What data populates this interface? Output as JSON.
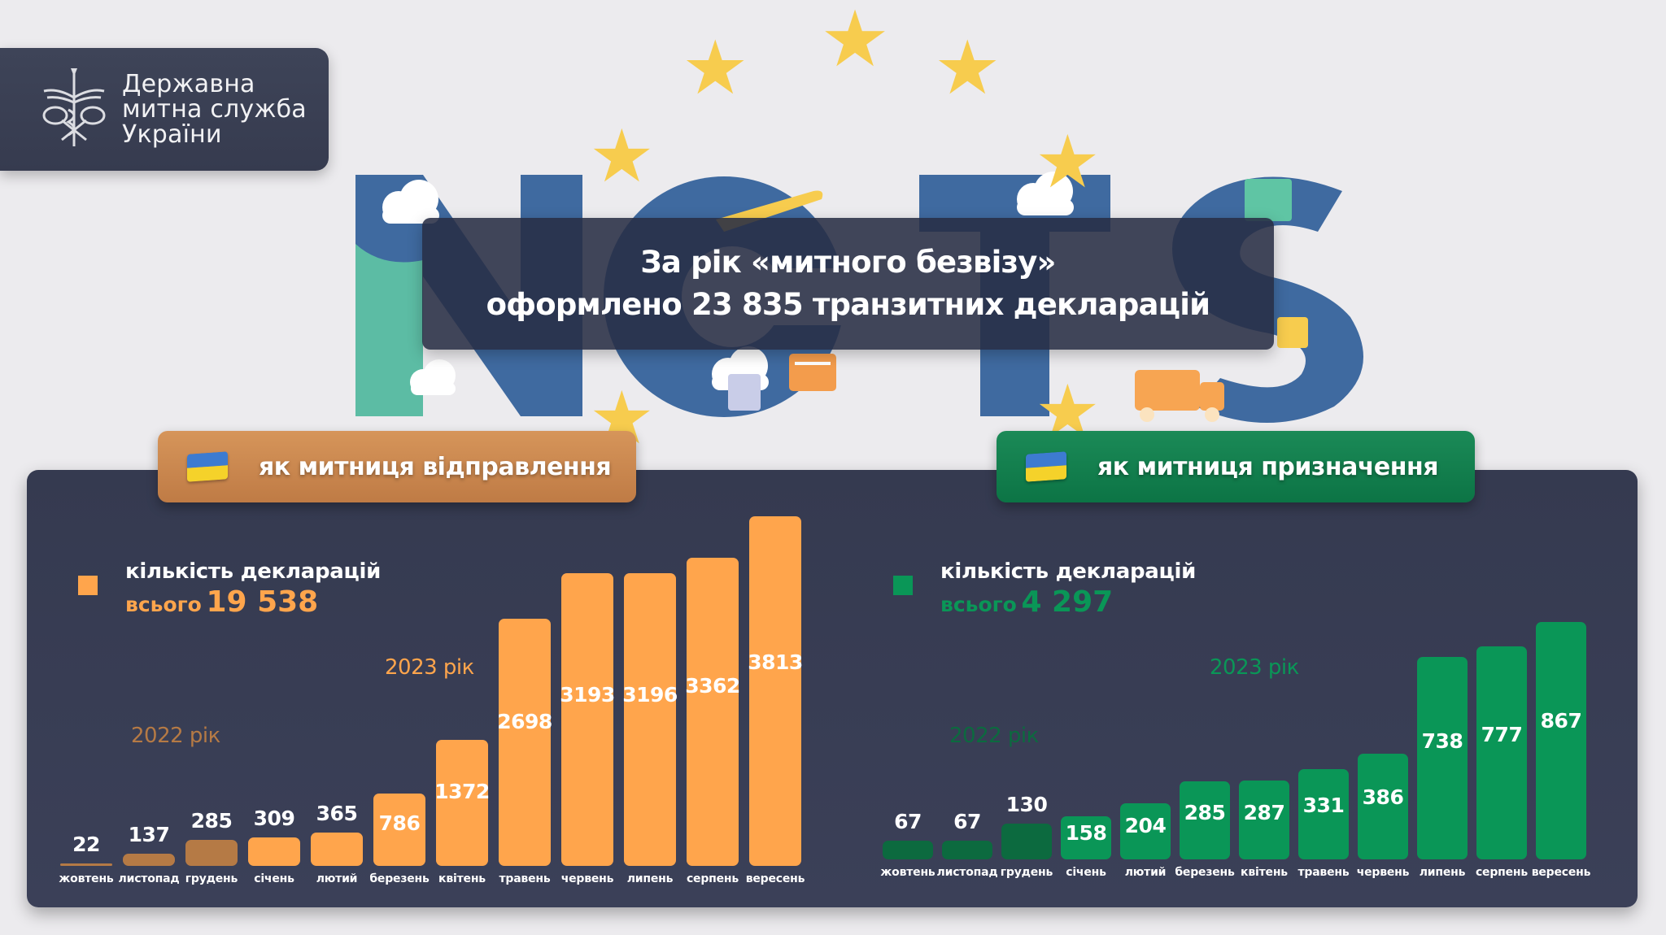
{
  "logo": {
    "line1": "Державна",
    "line2": "митна служба",
    "line3": "України"
  },
  "headline": {
    "line1": "За рік «митного безвізу»",
    "line2": "оформлено 23 835 транзитних декларацій"
  },
  "background": {
    "letters": [
      "N",
      "C",
      "T",
      "S"
    ]
  },
  "departure": {
    "tab_label": "як митниця відправлення",
    "legend_title": "кількість декларацій",
    "total_prefix": "всього",
    "total_value": "19 538",
    "year_2022": "2022 рік",
    "year_2023": "2023 рік",
    "color_2022": "#b57a45",
    "color_2023": "#ffa54c"
  },
  "destination": {
    "tab_label": "як митниця призначення",
    "legend_title": "кількість декларацій",
    "total_prefix": "всього",
    "total_value": "4 297",
    "year_2022": "2022 рік",
    "year_2023": "2023 рік",
    "color_2022": "#0c6a3f",
    "color_2023": "#0a9657"
  },
  "chart_data": [
    {
      "type": "bar",
      "title": "як митниця відправлення",
      "subtitle": "кількість декларацій, всього 19 538",
      "categories": [
        "жовтень",
        "листопад",
        "грудень",
        "січень",
        "лютий",
        "березень",
        "квітень",
        "травень",
        "червень",
        "липень",
        "серпень",
        "вересень"
      ],
      "values": [
        22,
        137,
        285,
        309,
        365,
        786,
        1372,
        2698,
        3193,
        3196,
        3362,
        3813
      ],
      "years": [
        "2022 рік",
        "2022 рік",
        "2022 рік",
        "2023 рік",
        "2023 рік",
        "2023 рік",
        "2023 рік",
        "2023 рік",
        "2023 рік",
        "2023 рік",
        "2023 рік",
        "2023 рік"
      ],
      "total": 19538,
      "xlabel": "",
      "ylabel": "",
      "ylim": [
        0,
        3813
      ],
      "grid": false,
      "legend": [
        "кількість декларацій"
      ],
      "legend_position": "top-left"
    },
    {
      "type": "bar",
      "title": "як митниця призначення",
      "subtitle": "кількість декларацій, всього 4 297",
      "categories": [
        "жовтень",
        "листопад",
        "грудень",
        "січень",
        "лютий",
        "березень",
        "квітень",
        "травень",
        "червень",
        "липень",
        "серпень",
        "вересень"
      ],
      "values": [
        67,
        67,
        130,
        158,
        204,
        285,
        287,
        331,
        386,
        738,
        777,
        867
      ],
      "years": [
        "2022 рік",
        "2022 рік",
        "2022 рік",
        "2023 рік",
        "2023 рік",
        "2023 рік",
        "2023 рік",
        "2023 рік",
        "2023 рік",
        "2023 рік",
        "2023 рік",
        "2023 рік"
      ],
      "total": 4297,
      "xlabel": "",
      "ylabel": "",
      "ylim": [
        0,
        867
      ],
      "grid": false,
      "legend": [
        "кількість декларацій"
      ],
      "legend_position": "top-left"
    }
  ]
}
